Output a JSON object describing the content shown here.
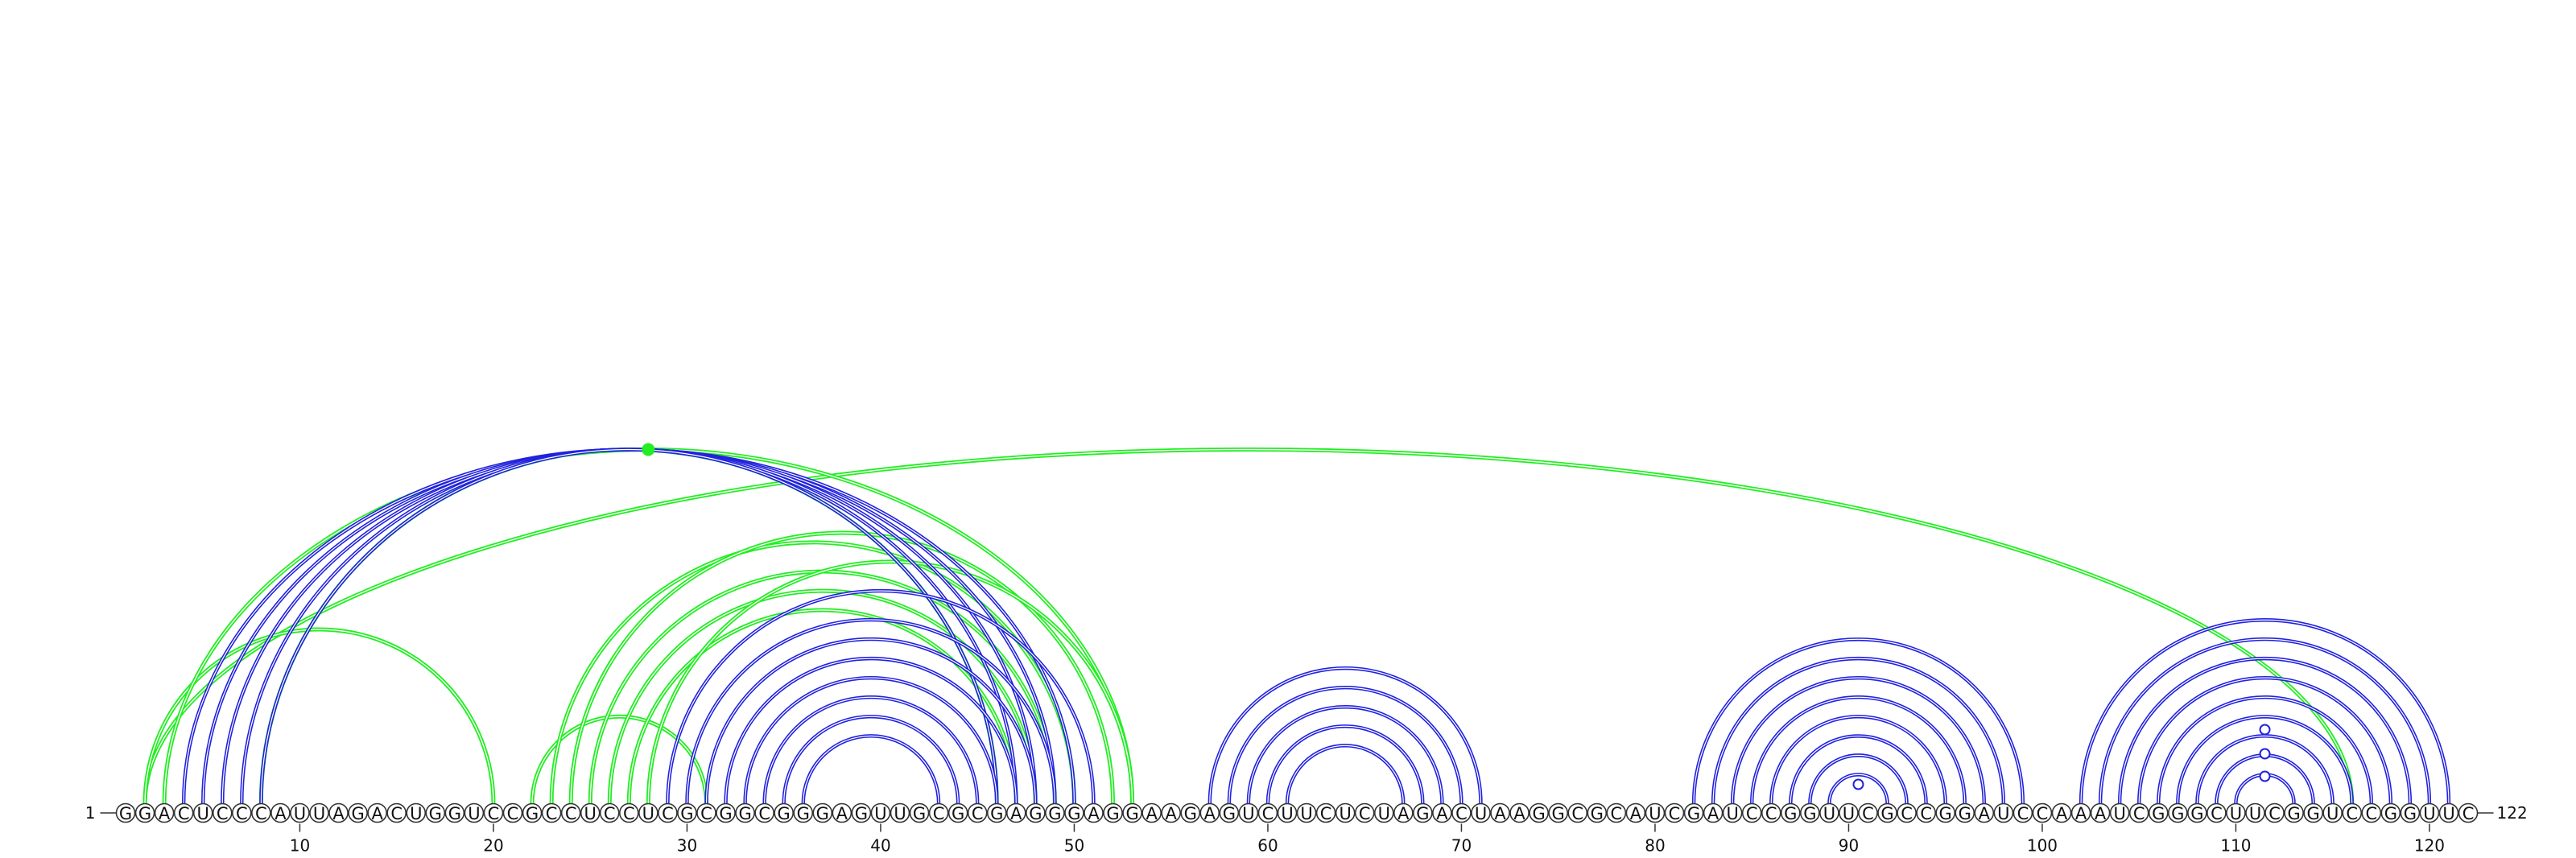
{
  "sequence": "GGACUCCCAUUAGACUGGUCCGCCUCCUCGCGGCGGGAGUUGCGCGAGGGAGGAAGAGUCUUCUCUAGACUAAGGCGCAUCGAUCCGGUUCGCCGGAUCCAAAUCGGGCUUCGGUCCGGUUC",
  "start_label": "1",
  "end_label": "122",
  "tick_labels": [
    "10",
    "20",
    "30",
    "40",
    "50",
    "60",
    "70",
    "80",
    "90",
    "100",
    "110",
    "120"
  ],
  "colors": {
    "blue_arc": "#2222dd",
    "green_arc": "#22ee22",
    "circle_stroke": "#333333"
  },
  "blue_pairs": [
    [
      4,
      50
    ],
    [
      5,
      49
    ],
    [
      6,
      48
    ],
    [
      7,
      47
    ],
    [
      8,
      46
    ],
    [
      29,
      51
    ],
    [
      30,
      49
    ],
    [
      31,
      48
    ],
    [
      32,
      47
    ],
    [
      33,
      46
    ],
    [
      34,
      45
    ],
    [
      35,
      44
    ],
    [
      36,
      43
    ],
    [
      57,
      71
    ],
    [
      58,
      70
    ],
    [
      59,
      69
    ],
    [
      60,
      68
    ],
    [
      61,
      67
    ],
    [
      82,
      99
    ],
    [
      83,
      98
    ],
    [
      84,
      97
    ],
    [
      85,
      96
    ],
    [
      86,
      95
    ],
    [
      87,
      94
    ],
    [
      88,
      93
    ],
    [
      89,
      92
    ],
    [
      102,
      121
    ],
    [
      103,
      120
    ],
    [
      104,
      119
    ],
    [
      105,
      118
    ],
    [
      106,
      117
    ],
    [
      107,
      116
    ],
    [
      108,
      115
    ],
    [
      109,
      114
    ],
    [
      110,
      113
    ]
  ],
  "green_pairs": [
    [
      2,
      116
    ],
    [
      2,
      20
    ],
    [
      3,
      53
    ],
    [
      8,
      46
    ],
    [
      22,
      31
    ],
    [
      23,
      50
    ],
    [
      24,
      52
    ],
    [
      25,
      49
    ],
    [
      26,
      48
    ],
    [
      27,
      47
    ],
    [
      28,
      53
    ]
  ],
  "arc_markers": [
    {
      "color": "green",
      "position": 28,
      "style": "filled"
    },
    {
      "color": "blue",
      "position": 90.5,
      "style": "open"
    },
    {
      "color": "blue",
      "position": 111.5,
      "style": "open"
    }
  ]
}
